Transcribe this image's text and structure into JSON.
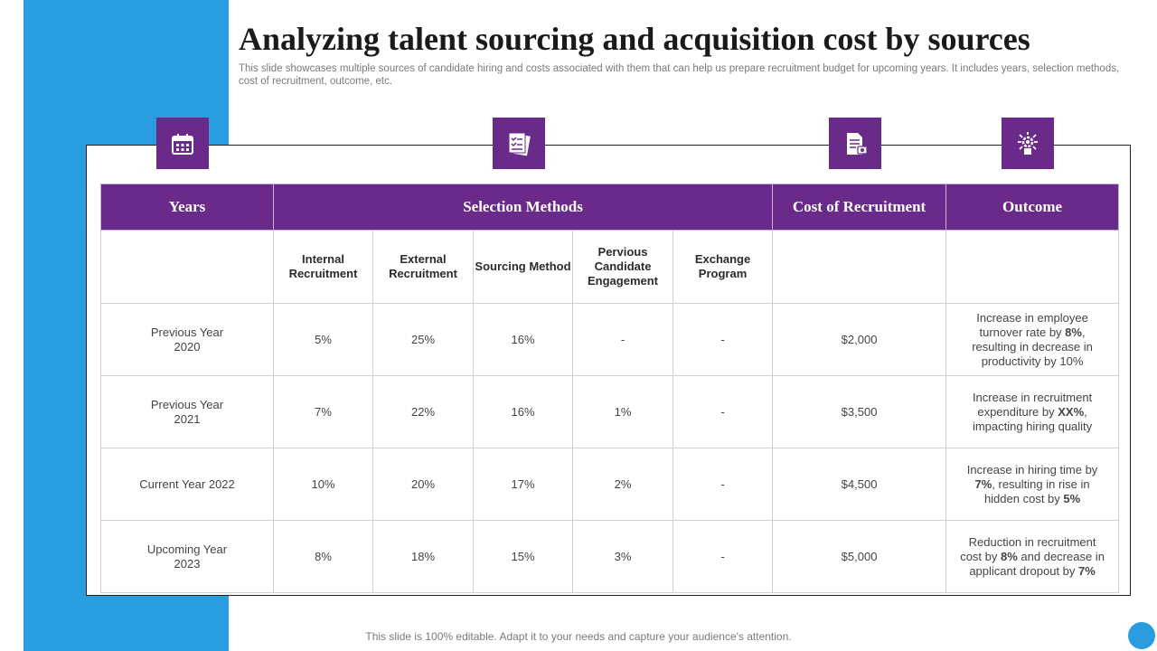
{
  "page": {
    "title": "Analyzing talent sourcing and acquisition cost by sources",
    "subtitle": "This slide showcases multiple sources of candidate hiring and costs associated with them that can help us prepare recruitment budget for upcoming years. It includes years, selection methods, cost of recruitment, outcome, etc.",
    "footer": "This slide is 100% editable. Adapt it to your needs and capture your audience's attention."
  },
  "colors": {
    "brand_purple": "#6a2a8a",
    "accent_blue": "#2a9de0"
  },
  "icons": [
    "calendar-icon",
    "checklist-icon",
    "cost-document-icon",
    "outcome-gear-icon"
  ],
  "table": {
    "headers": {
      "years": "Years",
      "selection_methods": "Selection Methods",
      "cost": "Cost of Recruitment",
      "outcome": "Outcome"
    },
    "sub_headers": [
      "Internal Recruitment",
      "External Recruitment",
      "Sourcing Method",
      "Pervious Candidate Engagement",
      "Exchange Program"
    ],
    "rows": [
      {
        "year": "Previous Year 2020",
        "internal": "5%",
        "external": "25%",
        "sourcing": "16%",
        "previous": "-",
        "exchange": "-",
        "cost": "$2,000",
        "outcome": [
          {
            "t": "Increase in employee turnover rate by "
          },
          {
            "t": "8%",
            "b": true
          },
          {
            "t": ", resulting in decrease in productivity  by 10%"
          }
        ]
      },
      {
        "year": "Previous Year 2021",
        "internal": "7%",
        "external": "22%",
        "sourcing": "16%",
        "previous": "1%",
        "exchange": "-",
        "cost": "$3,500",
        "outcome": [
          {
            "t": "Increase in recruitment expenditure  by "
          },
          {
            "t": "XX%",
            "b": true
          },
          {
            "t": ", impacting hiring quality"
          }
        ]
      },
      {
        "year": "Current Year 2022",
        "internal": "10%",
        "external": "20%",
        "sourcing": "17%",
        "previous": "2%",
        "exchange": "-",
        "cost": "$4,500",
        "outcome": [
          {
            "t": "Increase in hiring time by "
          },
          {
            "t": "7%",
            "b": true
          },
          {
            "t": ", resulting in rise in hidden cost by "
          },
          {
            "t": "5%",
            "b": true
          }
        ]
      },
      {
        "year": "Upcoming Year 2023",
        "internal": "8%",
        "external": "18%",
        "sourcing": "15%",
        "previous": "3%",
        "exchange": "-",
        "cost": "$5,000",
        "outcome": [
          {
            "t": "Reduction in recruitment cost by "
          },
          {
            "t": "8%",
            "b": true
          },
          {
            "t": " and decrease in applicant dropout  by "
          },
          {
            "t": "7%",
            "b": true
          }
        ]
      }
    ]
  }
}
